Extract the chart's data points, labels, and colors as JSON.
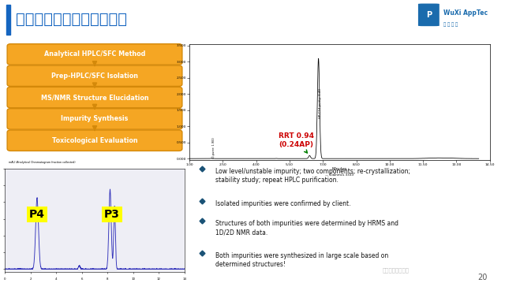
{
  "title": "实例分析：杂质分离和鉴别",
  "title_bar_color": "#1565C0",
  "title_color": "#1565C0",
  "bg_color": "#ffffff",
  "page_number": "20",
  "flow_steps": [
    "Analytical HPLC/SFC Method",
    "Prep-HPLC/SFC Isolation",
    "MS/NMR Structure Elucidation",
    "Impurity Synthesis",
    "Toxicological Evaluation"
  ],
  "flow_box_color": "#F5A623",
  "flow_box_border": "#D4890A",
  "flow_text_color": "#ffffff",
  "flow_arrow_color": "#D4890A",
  "chromatogram_note": "RRT 0.94\n(0.24AP)",
  "chromatogram_note_color": "#CC0000",
  "chromatogram_arrow_color": "#008000",
  "bullet_color": "#1A5276",
  "bullet_points": [
    "Low level/unstable impurity; two components; re-crystallization;\nstability study; repeat HPLC purification.",
    "Isolated impurities were confirmed by client.",
    "Structures of both impurities were determined by HRMS and\n1D/2D NMR data.",
    "Both impurities were synthesized in large scale based on\ndetermined structures!"
  ],
  "p4_label": "P4",
  "p3_label": "P3",
  "p4_label_bg": "#FFFF00",
  "p3_label_bg": "#FFFF00",
  "watermark_text": "医药研发社交平台",
  "logo_text": "WuXi AppTec",
  "logo_color": "#1A6BAD"
}
